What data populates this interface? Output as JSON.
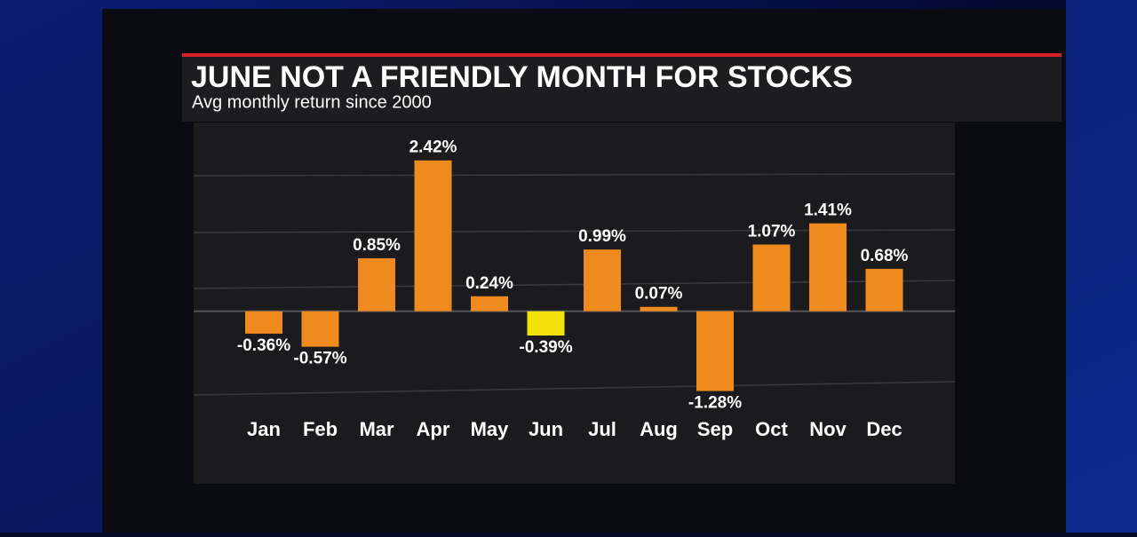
{
  "chart_data": {
    "type": "bar",
    "title": "JUNE NOT A FRIENDLY MONTH FOR STOCKS",
    "subtitle": "Avg monthly return since 2000",
    "categories": [
      "Jan",
      "Feb",
      "Mar",
      "Apr",
      "May",
      "Jun",
      "Jul",
      "Aug",
      "Sep",
      "Oct",
      "Nov",
      "Dec"
    ],
    "values": [
      -0.36,
      -0.57,
      0.85,
      2.42,
      0.24,
      -0.39,
      0.99,
      0.07,
      -1.28,
      1.07,
      1.41,
      0.68
    ],
    "value_labels": [
      "-0.36%",
      "-0.57%",
      "0.85%",
      "2.42%",
      "0.24%",
      "-0.39%",
      "0.99%",
      "0.07%",
      "-1.28%",
      "1.07%",
      "1.41%",
      "0.68%"
    ],
    "colors": [
      "#ef8a1e",
      "#ef8a1e",
      "#ef8a1e",
      "#ef8a1e",
      "#ef8a1e",
      "#f2e20a",
      "#ef8a1e",
      "#ef8a1e",
      "#ef8a1e",
      "#ef8a1e",
      "#ef8a1e",
      "#ef8a1e"
    ],
    "ylim": [
      -1.7,
      3.0
    ]
  }
}
